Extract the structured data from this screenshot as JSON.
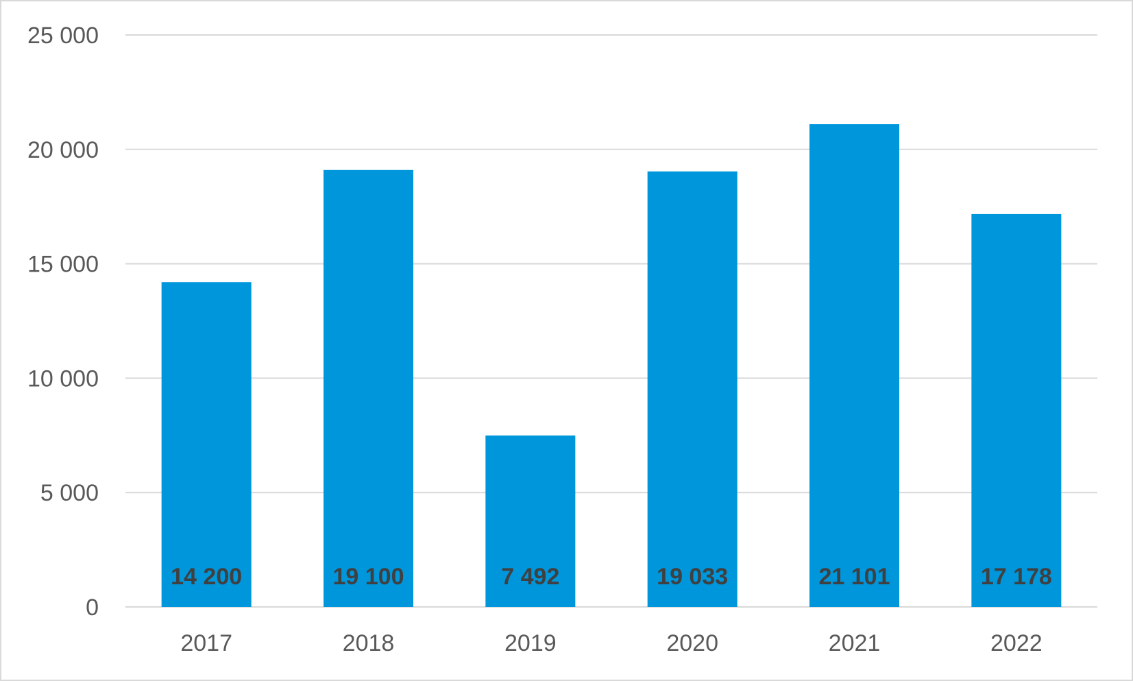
{
  "chart_data": {
    "type": "bar",
    "title": "",
    "xlabel": "",
    "ylabel": "",
    "categories": [
      "2017",
      "2018",
      "2019",
      "2020",
      "2021",
      "2022"
    ],
    "values": [
      14200,
      19100,
      7492,
      19033,
      21101,
      17178
    ],
    "data_labels": [
      "14 200",
      "19 100",
      "7 492",
      "19 033",
      "21 101",
      "17 178"
    ],
    "data_label_position": "inside-base",
    "ylim": [
      0,
      25000
    ],
    "y_ticks": [
      0,
      5000,
      10000,
      15000,
      20000,
      25000
    ],
    "y_tick_labels": [
      "0",
      "5 000",
      "10 000",
      "15 000",
      "20 000",
      "25 000"
    ],
    "grid": true,
    "legend": "none",
    "bar_color": "#0096DB",
    "grid_color": "#d9d9d9"
  }
}
